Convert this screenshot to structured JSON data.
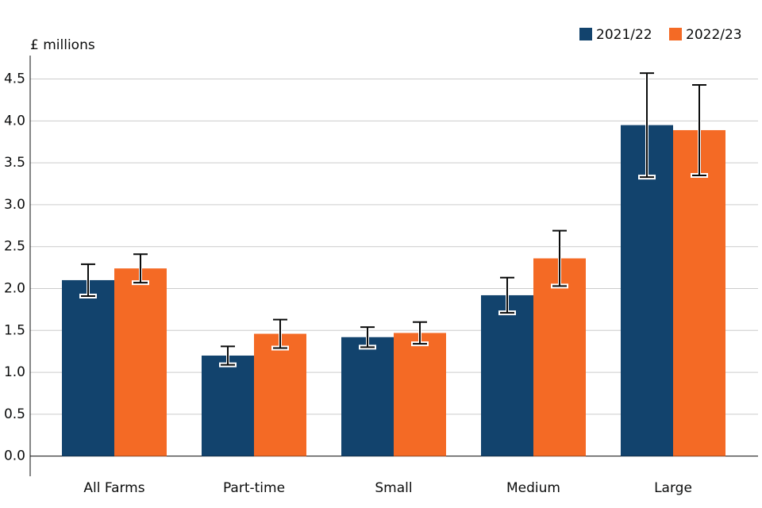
{
  "chart_data": {
    "type": "bar",
    "y_label": "£ millions",
    "categories": [
      "All Farms",
      "Part-time",
      "Small",
      "Medium",
      "Large"
    ],
    "series": [
      {
        "name": "2021/22",
        "color": "#12436d",
        "values": [
          2.1,
          1.2,
          1.42,
          1.92,
          3.95
        ],
        "errors": [
          0.19,
          0.11,
          0.12,
          0.21,
          0.62
        ]
      },
      {
        "name": "2022/23",
        "color": "#f46a25",
        "values": [
          2.24,
          1.46,
          1.47,
          2.36,
          3.89
        ],
        "errors": [
          0.17,
          0.17,
          0.13,
          0.33,
          0.54
        ]
      }
    ],
    "ylim": [
      -0.24,
      4.78
    ],
    "yticks": [
      {
        "value": 0,
        "label": "0.0"
      },
      0.5,
      {
        "value": 1,
        "label": "1.0"
      },
      1.5,
      {
        "value": 2,
        "label": "2.0"
      },
      2.5,
      {
        "value": 3,
        "label": "3.0"
      },
      3.5,
      {
        "value": 4,
        "label": "4.0"
      },
      4.5
    ],
    "grid": true,
    "legend": "top-right"
  }
}
